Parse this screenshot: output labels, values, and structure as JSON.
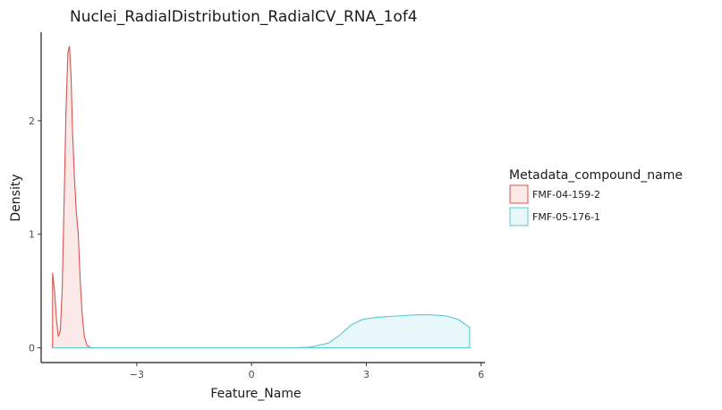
{
  "chart_data": {
    "type": "area",
    "subtype": "density",
    "title": "Nuclei_RadialDistribution_RadialCV_RNA_1of4",
    "xlabel": "Feature_Name",
    "ylabel": "Density",
    "xlim": [
      -5.5,
      6.1
    ],
    "ylim": [
      -0.13,
      2.78
    ],
    "x_ticks": [
      -3,
      0,
      3,
      6
    ],
    "x_tick_labels": [
      "−3",
      "0",
      "3",
      "6"
    ],
    "y_ticks": [
      0,
      1,
      2
    ],
    "y_tick_labels": [
      "0",
      "1",
      "2"
    ],
    "grid": false,
    "legend": {
      "title": "Metadata_compound_name",
      "position": "right"
    },
    "series": [
      {
        "name": "FMF-04-159-2",
        "line_color": "#d9534f",
        "fill_color": "#fbe9e8",
        "points": [
          [
            -5.2,
            0.66
          ],
          [
            -5.15,
            0.5
          ],
          [
            -5.1,
            0.25
          ],
          [
            -5.05,
            0.1
          ],
          [
            -5.0,
            0.15
          ],
          [
            -4.95,
            0.5
          ],
          [
            -4.9,
            1.3
          ],
          [
            -4.85,
            2.1
          ],
          [
            -4.8,
            2.6
          ],
          [
            -4.76,
            2.66
          ],
          [
            -4.72,
            2.4
          ],
          [
            -4.68,
            1.9
          ],
          [
            -4.63,
            1.5
          ],
          [
            -4.58,
            1.2
          ],
          [
            -4.53,
            1.0
          ],
          [
            -4.48,
            0.6
          ],
          [
            -4.43,
            0.3
          ],
          [
            -4.37,
            0.1
          ],
          [
            -4.3,
            0.02
          ],
          [
            -4.2,
            0.0
          ],
          [
            5.7,
            0.0
          ]
        ]
      },
      {
        "name": "FMF-05-176-1",
        "line_color": "#5bc8d4",
        "fill_color": "#e8f7f9",
        "points": [
          [
            -5.2,
            0.0
          ],
          [
            1.1,
            0.0
          ],
          [
            1.5,
            0.005
          ],
          [
            2.0,
            0.04
          ],
          [
            2.3,
            0.11
          ],
          [
            2.6,
            0.2
          ],
          [
            2.9,
            0.25
          ],
          [
            3.3,
            0.27
          ],
          [
            3.8,
            0.28
          ],
          [
            4.3,
            0.29
          ],
          [
            4.7,
            0.29
          ],
          [
            5.1,
            0.28
          ],
          [
            5.4,
            0.25
          ],
          [
            5.7,
            0.18
          ]
        ]
      }
    ]
  }
}
